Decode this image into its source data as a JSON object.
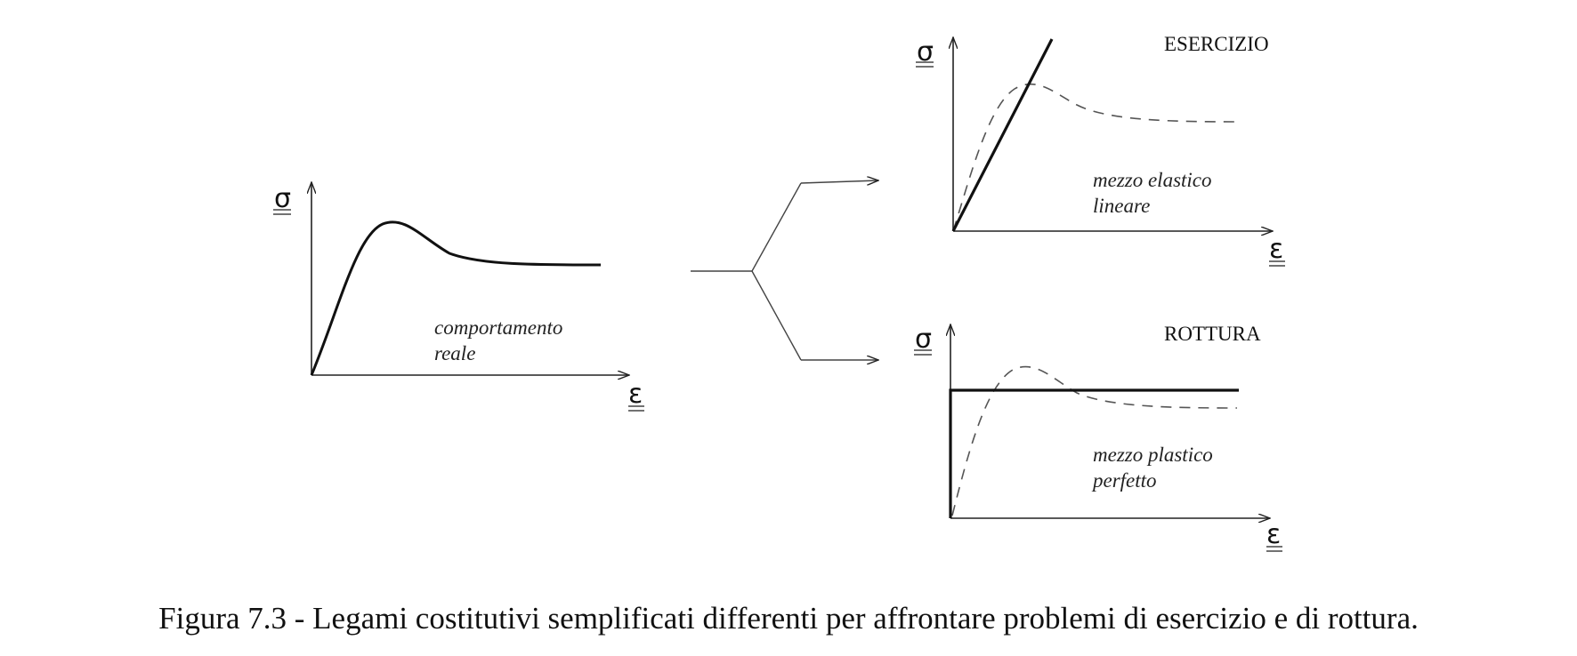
{
  "left_panel": {
    "y_label": "σ",
    "x_label": "ε",
    "note_line1": "comportamento",
    "note_line2": "reale"
  },
  "top_right_panel": {
    "title": "ESERCIZIO",
    "y_label": "σ",
    "x_label": "ε",
    "note_line1": "mezzo elastico",
    "note_line2": "lineare"
  },
  "bottom_right_panel": {
    "title": "ROTTURA",
    "y_label": "σ",
    "x_label": "ε",
    "note_line1": "mezzo plastico",
    "note_line2": "perfetto"
  },
  "caption": "Figura 7.3 - Legami costitutivi semplificati differenti per affrontare problemi di esercizio e di rottura."
}
